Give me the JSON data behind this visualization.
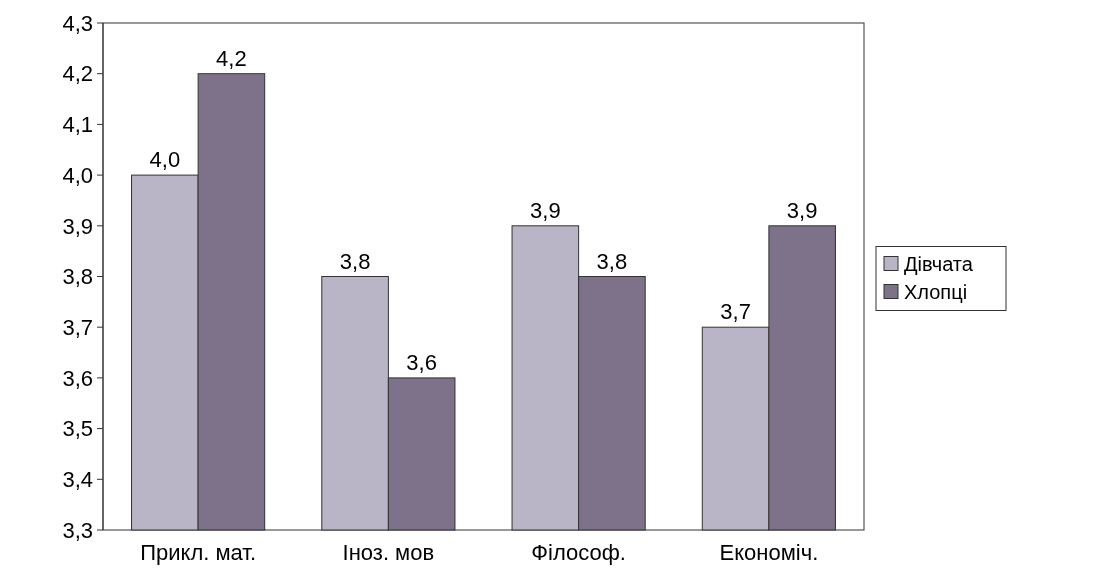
{
  "chart_data": {
    "type": "bar",
    "categories": [
      "Прикл. мат.",
      "Іноз. мов",
      "Філософ.",
      "Економіч."
    ],
    "series": [
      {
        "name": "Дівчата",
        "color": "#b9b5c6",
        "values": [
          4.0,
          3.8,
          3.9,
          3.7
        ],
        "value_labels": [
          "4,0",
          "3,8",
          "3,9",
          "3,7"
        ]
      },
      {
        "name": "Хлопці",
        "color": "#7d7289",
        "values": [
          4.2,
          3.6,
          3.8,
          3.9
        ],
        "value_labels": [
          "4,2",
          "3,6",
          "3,8",
          "3,9"
        ]
      }
    ],
    "ylim": [
      3.3,
      4.3
    ],
    "yticks": [
      {
        "value": 3.3,
        "label": "3,3"
      },
      {
        "value": 3.4,
        "label": "3,4"
      },
      {
        "value": 3.5,
        "label": "3,5"
      },
      {
        "value": 3.6,
        "label": "3,6"
      },
      {
        "value": 3.7,
        "label": "3,7"
      },
      {
        "value": 3.8,
        "label": "3,8"
      },
      {
        "value": 3.9,
        "label": "3,9"
      },
      {
        "value": 4.0,
        "label": "4,0"
      },
      {
        "value": 4.1,
        "label": "4,1"
      },
      {
        "value": 4.2,
        "label": "4,2"
      },
      {
        "value": 4.3,
        "label": "4,3"
      }
    ],
    "grid": false,
    "legend": "right"
  }
}
